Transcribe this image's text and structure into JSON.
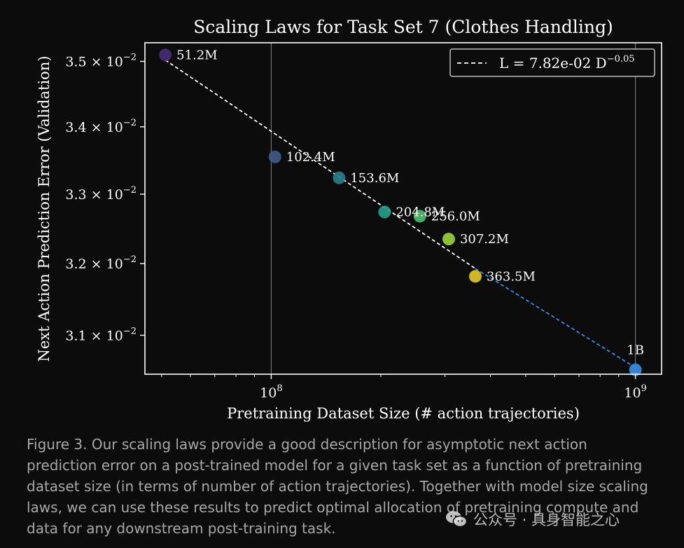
{
  "chart_data": {
    "type": "scatter",
    "title": "Scaling Laws for Task Set 7 (Clothes Handling)",
    "xlabel": "Pretraining Dataset Size (# action trajectories)",
    "ylabel": "Next Action Prediction Error (Validation)",
    "x_scale": "log",
    "y_scale": "log",
    "xlim": [
      45000000,
      1180000000
    ],
    "ylim": [
      0.03047,
      0.03529
    ],
    "grid": {
      "x_major": true,
      "y": false
    },
    "x_ticks": [
      {
        "value": 100000000,
        "base": "10",
        "exp": "8"
      },
      {
        "value": 1000000000,
        "base": "10",
        "exp": "9"
      }
    ],
    "y_ticks": [
      {
        "value": 0.035,
        "mant": "3.5",
        "base": "10",
        "exp": "−2"
      },
      {
        "value": 0.034,
        "mant": "3.4",
        "base": "10",
        "exp": "−2"
      },
      {
        "value": 0.033,
        "mant": "3.3",
        "base": "10",
        "exp": "−2"
      },
      {
        "value": 0.032,
        "mant": "3.2",
        "base": "10",
        "exp": "−2"
      },
      {
        "value": 0.031,
        "mant": "3.1",
        "base": "10",
        "exp": "−2"
      }
    ],
    "points": [
      {
        "label": "51.2M",
        "x": 51200000,
        "y": 0.0351,
        "color": "#482f74"
      },
      {
        "label": "102.4M",
        "x": 102400000,
        "y": 0.03355,
        "color": "#3d5b8a"
      },
      {
        "label": "153.6M",
        "x": 153600000,
        "y": 0.03324,
        "color": "#2b7f8a"
      },
      {
        "label": "204.8M",
        "x": 204800000,
        "y": 0.03274,
        "color": "#22a189"
      },
      {
        "label": "256.0M",
        "x": 256000000,
        "y": 0.03268,
        "color": "#4fc06d"
      },
      {
        "label": "307.2M",
        "x": 307200000,
        "y": 0.03235,
        "color": "#9cd43a"
      },
      {
        "label": "363.5M",
        "x": 363500000,
        "y": 0.03182,
        "color": "#e3c92a"
      },
      {
        "label": "1B",
        "x": 1000000000,
        "y": 0.03053,
        "color": "#3a8ee6"
      }
    ],
    "fit": {
      "x": [
        51200000,
        363500000
      ],
      "y": [
        0.03502,
        0.03193
      ],
      "color": "#ffffff",
      "style": "dashed"
    },
    "extrapolation": {
      "x": [
        363500000,
        1000000000
      ],
      "y": [
        0.03193,
        0.03056
      ],
      "color": "#3a8ee6",
      "style": "dashed"
    },
    "legend": {
      "position": "top-right",
      "entries": [
        {
          "text": "L = 7.82e-02 D",
          "sup": "−0.05",
          "style": "dashed",
          "color": "#ffffff"
        }
      ]
    }
  },
  "caption": "Figure 3. Our scaling laws provide a good description for asymptotic next action prediction error on a post-trained model for a given task set as a function of pretraining dataset size (in terms of number of action trajectories). Together with model size scaling laws, we can use these results to predict optimal allocation of pretraining compute and data for any downstream post-training task.",
  "watermark": {
    "icon": "wechat-icon",
    "text": "公众号 · 具身智能之心"
  }
}
